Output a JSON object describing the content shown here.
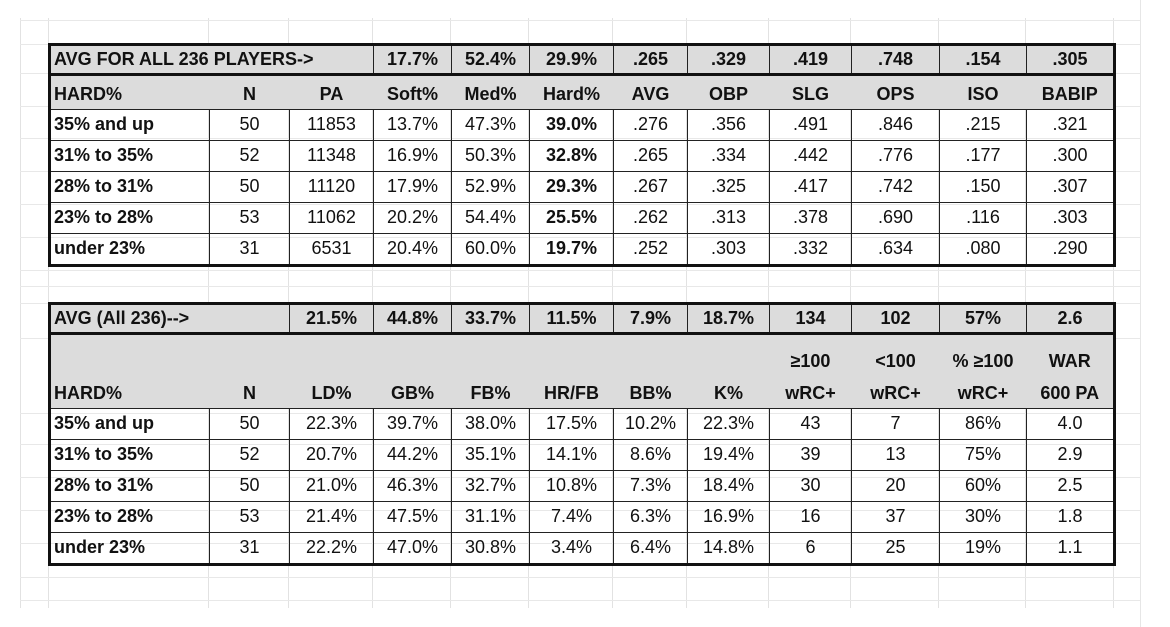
{
  "table1": {
    "avg_label": "AVG FOR ALL 236 PLAYERS->",
    "avg_values": [
      "17.7%",
      "52.4%",
      "29.9%",
      ".265",
      ".329",
      ".419",
      ".748",
      ".154",
      ".305"
    ],
    "headers": [
      "HARD%",
      "N",
      "PA",
      "Soft%",
      "Med%",
      "Hard%",
      "AVG",
      "OBP",
      "SLG",
      "OPS",
      "ISO",
      "BABIP"
    ],
    "rows": [
      [
        "35% and up",
        "50",
        "11853",
        "13.7%",
        "47.3%",
        "39.0%",
        ".276",
        ".356",
        ".491",
        ".846",
        ".215",
        ".321"
      ],
      [
        "31% to 35%",
        "52",
        "11348",
        "16.9%",
        "50.3%",
        "32.8%",
        ".265",
        ".334",
        ".442",
        ".776",
        ".177",
        ".300"
      ],
      [
        "28% to 31%",
        "50",
        "11120",
        "17.9%",
        "52.9%",
        "29.3%",
        ".267",
        ".325",
        ".417",
        ".742",
        ".150",
        ".307"
      ],
      [
        "23% to 28%",
        "53",
        "11062",
        "20.2%",
        "54.4%",
        "25.5%",
        ".262",
        ".313",
        ".378",
        ".690",
        ".116",
        ".303"
      ],
      [
        "under 23%",
        "31",
        "6531",
        "20.4%",
        "60.0%",
        "19.7%",
        ".252",
        ".303",
        ".332",
        ".634",
        ".080",
        ".290"
      ]
    ]
  },
  "table2": {
    "avg_label": "AVG (All 236)-->",
    "avg_values": [
      "21.5%",
      "44.8%",
      "33.7%",
      "11.5%",
      "7.9%",
      "18.7%",
      "134",
      "102",
      "57%",
      "2.6"
    ],
    "headers": [
      {
        "line1": "",
        "line2": "HARD%"
      },
      {
        "line1": "",
        "line2": "N"
      },
      {
        "line1": "",
        "line2": "LD%"
      },
      {
        "line1": "",
        "line2": "GB%"
      },
      {
        "line1": "",
        "line2": "FB%"
      },
      {
        "line1": "",
        "line2": "HR/FB"
      },
      {
        "line1": "",
        "line2": "BB%"
      },
      {
        "line1": "",
        "line2": "K%"
      },
      {
        "line1": "≥100",
        "line2": "wRC+"
      },
      {
        "line1": "<100",
        "line2": "wRC+"
      },
      {
        "line1": "% ≥100",
        "line2": "wRC+"
      },
      {
        "line1": "WAR",
        "line2": "600 PA"
      }
    ],
    "rows": [
      [
        "35% and up",
        "50",
        "22.3%",
        "39.7%",
        "38.0%",
        "17.5%",
        "10.2%",
        "22.3%",
        "43",
        "7",
        "86%",
        "4.0"
      ],
      [
        "31% to 35%",
        "52",
        "20.7%",
        "44.2%",
        "35.1%",
        "14.1%",
        "8.6%",
        "19.4%",
        "39",
        "13",
        "75%",
        "2.9"
      ],
      [
        "28% to 31%",
        "50",
        "21.0%",
        "46.3%",
        "32.7%",
        "10.8%",
        "7.3%",
        "18.4%",
        "30",
        "20",
        "60%",
        "2.5"
      ],
      [
        "23% to 28%",
        "53",
        "21.4%",
        "47.5%",
        "31.1%",
        "7.4%",
        "6.3%",
        "16.9%",
        "16",
        "37",
        "30%",
        "1.8"
      ],
      [
        "under 23%",
        "31",
        "22.2%",
        "47.0%",
        "30.8%",
        "3.4%",
        "6.4%",
        "14.8%",
        "6",
        "25",
        "19%",
        "1.1"
      ]
    ]
  }
}
